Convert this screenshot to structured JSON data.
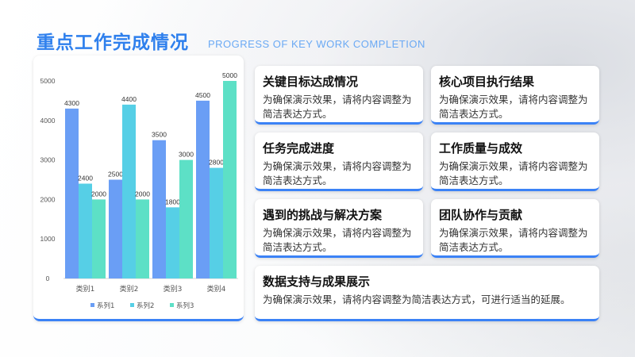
{
  "header": {
    "title": "重点工作完成情况",
    "subtitle": "PROGRESS OF KEY WORK COMPLETION"
  },
  "cards": [
    {
      "title": "关键目标达成情况",
      "body": "为确保演示效果，请将内容调整为简洁表达方式。"
    },
    {
      "title": "核心项目执行结果",
      "body": "为确保演示效果，请将内容调整为简洁表达方式。"
    },
    {
      "title": "任务完成进度",
      "body": "为确保演示效果，请将内容调整为简洁表达方式。"
    },
    {
      "title": "工作质量与成效",
      "body": "为确保演示效果，请将内容调整为简洁表达方式。"
    },
    {
      "title": "遇到的挑战与解决方案",
      "body": "为确保演示效果，请将内容调整为简洁表达方式。"
    },
    {
      "title": "团队协作与贡献",
      "body": "为确保演示效果，请将内容调整为简洁表达方式。"
    },
    {
      "title": "数据支持与成果展示",
      "body": "为确保演示效果，请将内容调整为简洁表达方式，可进行适当的延展。"
    }
  ],
  "colors": {
    "accent": "#2f80ed",
    "series1": "#6a9ef5",
    "series2": "#56cfe6",
    "series3": "#5de0c6"
  },
  "chart_data": {
    "type": "bar",
    "categories": [
      "类别1",
      "类别2",
      "类别3",
      "类别4"
    ],
    "series": [
      {
        "name": "系列1",
        "values": [
          4300,
          2500,
          3500,
          4500
        ]
      },
      {
        "name": "系列2",
        "values": [
          2400,
          4400,
          1800,
          2800
        ]
      },
      {
        "name": "系列3",
        "values": [
          2000,
          2000,
          3000,
          5000
        ]
      }
    ],
    "yticks": [
      0,
      1000,
      2000,
      3000,
      4000,
      5000
    ],
    "ylim": [
      0,
      5000
    ],
    "grid": false,
    "legend": "bottom"
  }
}
